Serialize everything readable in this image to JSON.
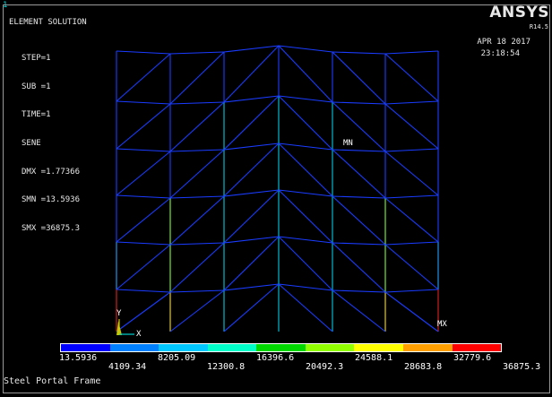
{
  "window_number": "1",
  "logo": "ANSYS",
  "release": "R14.5",
  "title": "ELEMENT SOLUTION",
  "info_lines": [
    "STEP=1",
    "SUB =1",
    "TIME=1",
    "SENE",
    "DMX =1.77366",
    "SMN =13.5936",
    "SMX =36875.3"
  ],
  "date": "APR 18 2017",
  "time": "23:18:54",
  "markers": {
    "min": "MN",
    "max": "MX"
  },
  "triad": {
    "y": "Y",
    "x": "X"
  },
  "legend": {
    "colors": [
      "#0000ff",
      "#0080ff",
      "#00c8ff",
      "#00ffc8",
      "#00d800",
      "#90ff00",
      "#ffff00",
      "#ffa000",
      "#ff0000"
    ],
    "labels_top": [
      "13.5936",
      "8205.09",
      "16396.6",
      "24588.1",
      "32779.6"
    ],
    "labels_bottom": [
      "4109.34",
      "12300.8",
      "20492.3",
      "28683.8",
      "36875.3"
    ]
  },
  "caption": "Steel Portal Frame"
}
